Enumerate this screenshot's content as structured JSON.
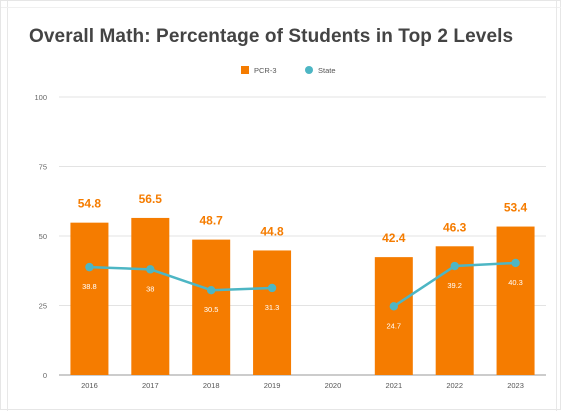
{
  "chart_data": {
    "type": "bar",
    "title": "Overall Math: Percentage of Students in Top 2 Levels",
    "xlabel": "",
    "ylabel": "",
    "ylim": [
      0,
      100
    ],
    "yticks": [
      "0",
      "25",
      "50",
      "75",
      "100"
    ],
    "categories": [
      "2016",
      "2017",
      "2018",
      "2019",
      "2020",
      "2021",
      "2022",
      "2023"
    ],
    "legend_position": "top-center",
    "grid": true,
    "series": [
      {
        "name": "PCR-3",
        "type": "bar",
        "color": "#f57c00",
        "values": [
          54.8,
          56.5,
          48.7,
          44.8,
          null,
          42.4,
          46.3,
          53.4
        ],
        "labels": [
          "54.8",
          "56.5",
          "48.7",
          "44.8",
          "",
          "42.4",
          "46.3",
          "53.4"
        ]
      },
      {
        "name": "State",
        "type": "line",
        "color": "#4db6c4",
        "values": [
          38.8,
          38,
          30.5,
          31.3,
          null,
          24.7,
          39.2,
          40.3
        ],
        "labels": [
          "38.8",
          "38",
          "30.5",
          "31.3",
          "",
          "24.7",
          "39.2",
          "40.3"
        ]
      }
    ]
  }
}
